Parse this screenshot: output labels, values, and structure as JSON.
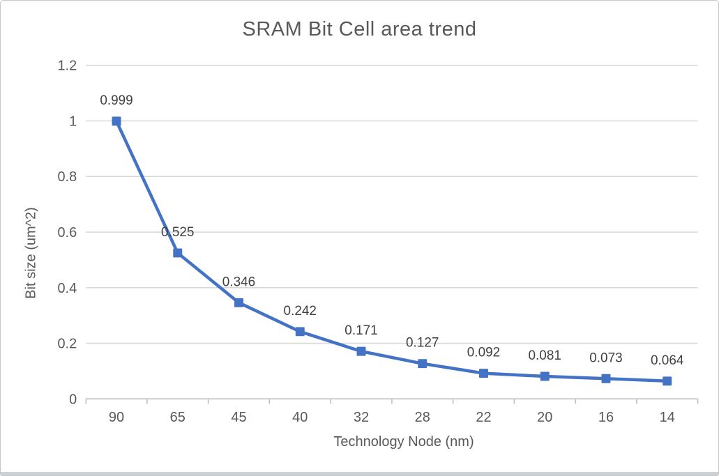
{
  "title": "SRAM Bit Cell area trend",
  "chart_data": {
    "type": "line",
    "title": "SRAM Bit Cell area trend",
    "xlabel": "Technology Node (nm)",
    "ylabel": "Bit size (um^2)",
    "categories": [
      "90",
      "65",
      "45",
      "40",
      "32",
      "28",
      "22",
      "20",
      "16",
      "14"
    ],
    "series": [
      {
        "name": "Bit size",
        "values": [
          0.999,
          0.525,
          0.346,
          0.242,
          0.171,
          0.127,
          0.092,
          0.081,
          0.073,
          0.064
        ]
      }
    ],
    "data_labels": [
      "0.999",
      "0.525",
      "0.346",
      "0.242",
      "0.171",
      "0.127",
      "0.092",
      "0.081",
      "0.073",
      "0.064"
    ],
    "ylim": [
      0,
      1.2
    ],
    "y_ticks": [
      "0",
      "0.2",
      "0.4",
      "0.6",
      "0.8",
      "1",
      "1.2"
    ],
    "grid": true,
    "legend": "none",
    "marker": "square"
  },
  "colors": {
    "series_line": "#4472C4",
    "marker_fill": "#4472C4",
    "gridline": "#D9D9D9",
    "axis_line": "#BFBFBF",
    "tick_label": "#595959",
    "data_label": "#404040",
    "title_text": "#595959"
  }
}
